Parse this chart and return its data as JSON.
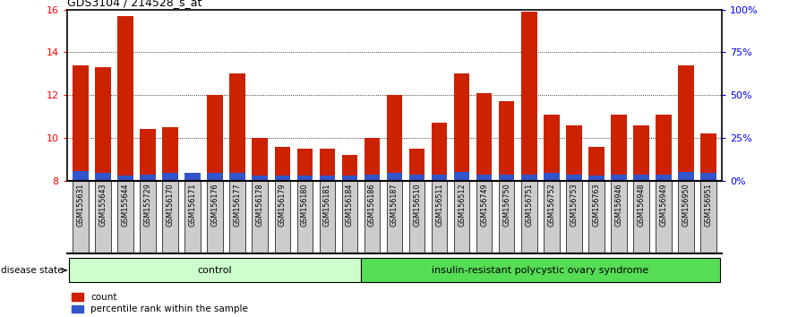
{
  "title": "GDS3104 / 214528_s_at",
  "samples": [
    "GSM155631",
    "GSM155643",
    "GSM155644",
    "GSM155729",
    "GSM156170",
    "GSM156171",
    "GSM156176",
    "GSM156177",
    "GSM156178",
    "GSM156179",
    "GSM156180",
    "GSM156181",
    "GSM156184",
    "GSM156186",
    "GSM156187",
    "GSM156510",
    "GSM156511",
    "GSM156512",
    "GSM156749",
    "GSM156750",
    "GSM156751",
    "GSM156752",
    "GSM156753",
    "GSM156763",
    "GSM156946",
    "GSM156948",
    "GSM156949",
    "GSM156950",
    "GSM156951"
  ],
  "red_values": [
    13.4,
    13.3,
    15.7,
    10.4,
    10.5,
    8.3,
    12.0,
    13.0,
    10.0,
    9.6,
    9.5,
    9.5,
    9.2,
    10.0,
    12.0,
    9.5,
    10.7,
    13.0,
    12.1,
    11.7,
    15.9,
    11.1,
    10.6,
    9.6,
    11.1,
    10.6,
    11.1,
    13.4,
    10.2
  ],
  "blue_values": [
    0.45,
    0.35,
    0.25,
    0.3,
    0.35,
    0.35,
    0.35,
    0.35,
    0.25,
    0.25,
    0.25,
    0.25,
    0.25,
    0.3,
    0.35,
    0.3,
    0.3,
    0.4,
    0.3,
    0.3,
    0.3,
    0.35,
    0.3,
    0.25,
    0.3,
    0.3,
    0.3,
    0.4,
    0.35
  ],
  "bar_bottom": 8.0,
  "ylim": [
    8.0,
    16.0
  ],
  "yticks": [
    8,
    10,
    12,
    14,
    16
  ],
  "right_yticks": [
    0,
    25,
    50,
    75,
    100
  ],
  "right_ylabels": [
    "0%",
    "25%",
    "50%",
    "75%",
    "100%"
  ],
  "control_count": 13,
  "control_label": "control",
  "disease_label": "insulin-resistant polycystic ovary syndrome",
  "bar_color_red": "#cc2200",
  "bar_color_blue": "#3355cc",
  "control_bg": "#ccffcc",
  "disease_bg": "#55dd55",
  "xlabel_bg": "#cccccc",
  "legend_count": "count",
  "legend_pct": "percentile rank within the sample",
  "disease_state_label": "disease state",
  "grid_color": "#555555",
  "spine_color": "#000000"
}
